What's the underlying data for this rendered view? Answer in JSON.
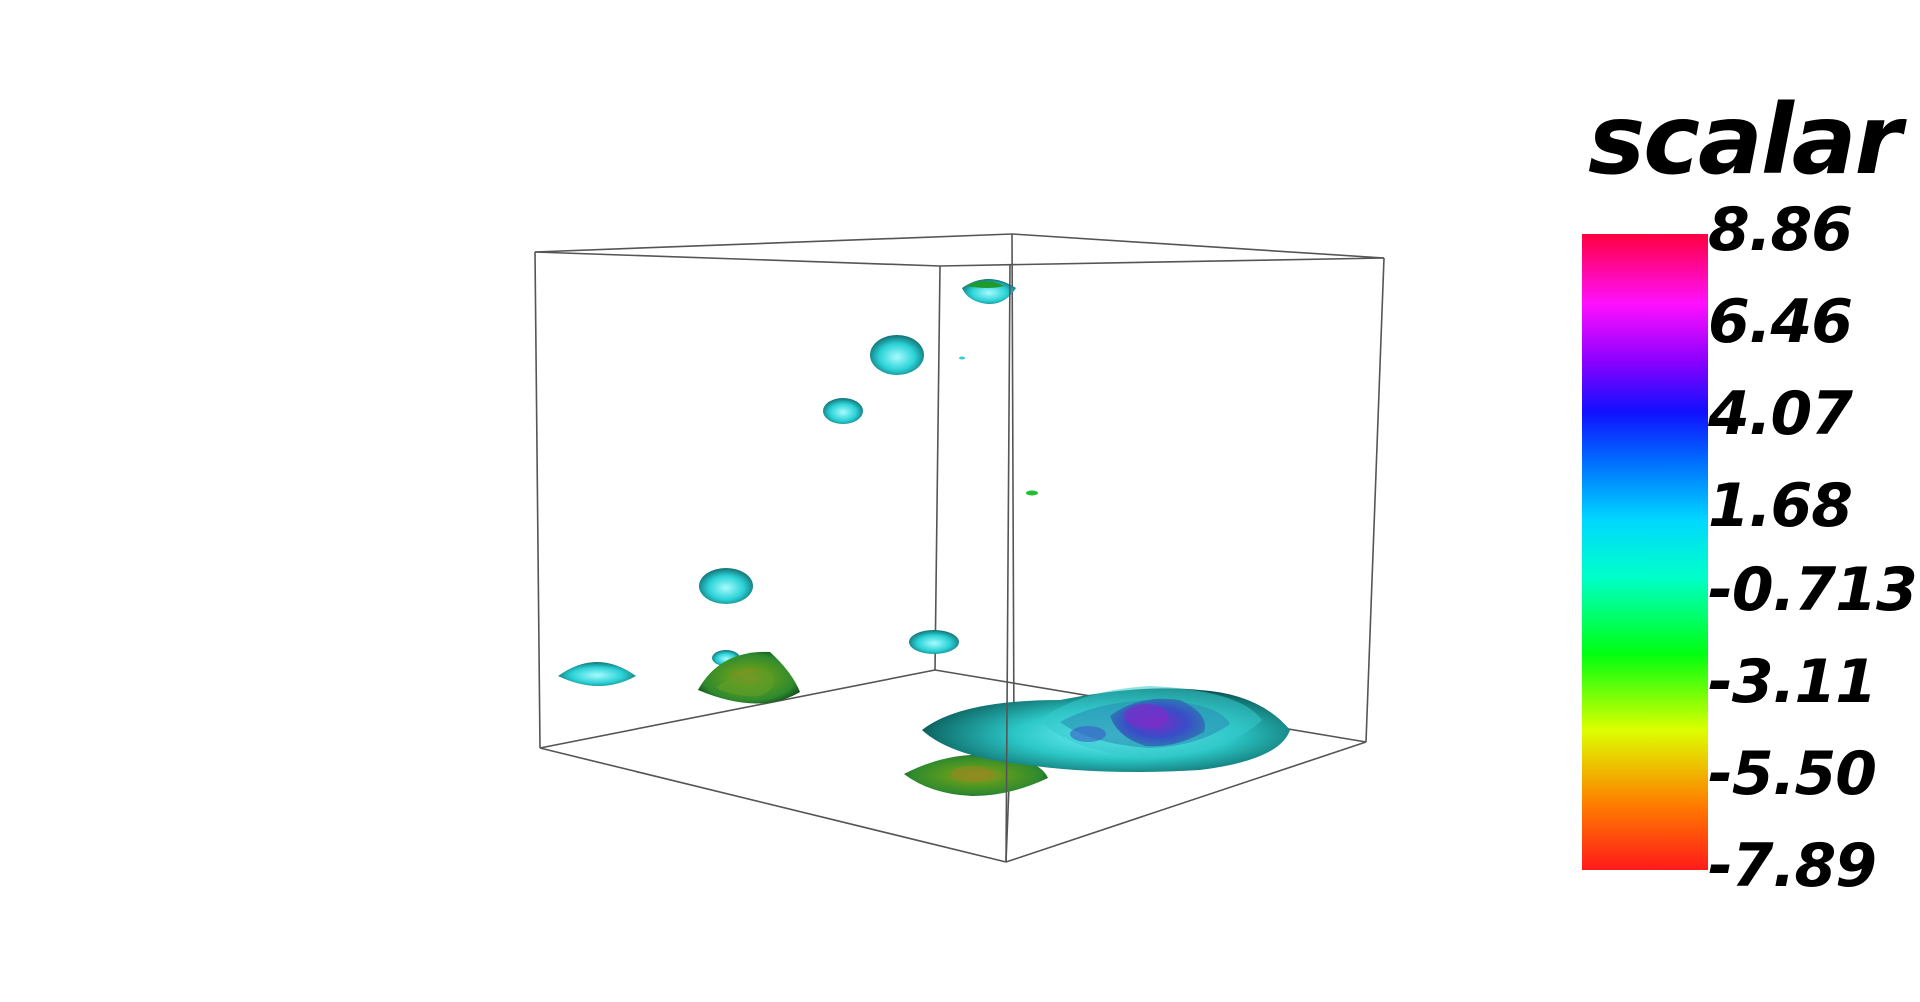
{
  "legend": {
    "title": "scalar",
    "ticks": [
      "8.86",
      "6.46",
      "4.07",
      "1.68",
      "-0.713",
      "-3.11",
      "-5.50",
      "-7.89"
    ],
    "range": [
      -7.89,
      8.86
    ],
    "colormap": [
      "#ff0000",
      "#ff8000",
      "#e0ff00",
      "#00ff00",
      "#00ffd0",
      "#00b0ff",
      "#0000ff",
      "#a000ff",
      "#ff00ff",
      "#ff0040"
    ]
  },
  "scene": {
    "description_icon": "bounding-box-wireframe",
    "box_color": "#555555"
  }
}
